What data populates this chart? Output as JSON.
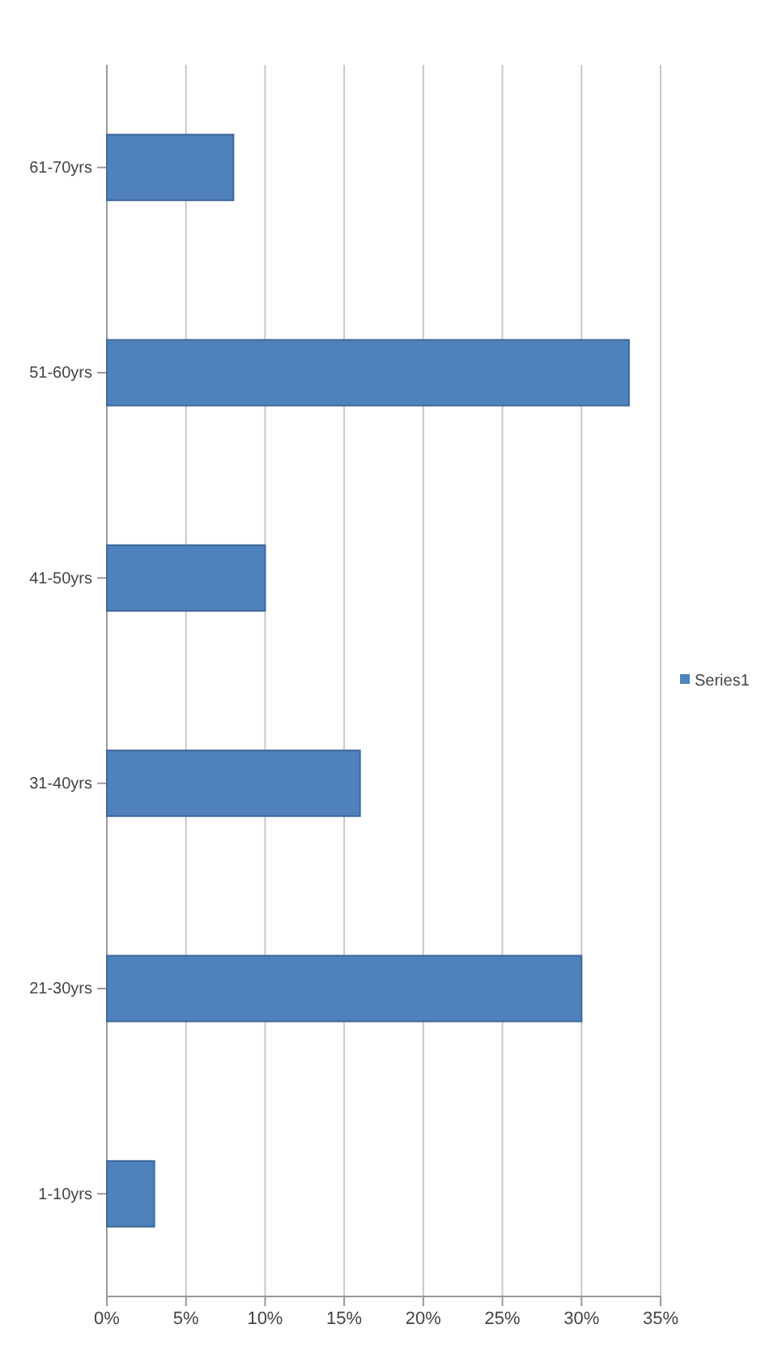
{
  "chart_data": {
    "type": "bar",
    "orientation": "horizontal",
    "categories": [
      "61-70yrs",
      "51-60yrs",
      "41-50yrs",
      "31-40yrs",
      "21-30yrs",
      "1-10yrs"
    ],
    "series": [
      {
        "name": "Series1",
        "color": "#4f81bd",
        "values": [
          8,
          33,
          10,
          16,
          30,
          3
        ]
      }
    ],
    "xlim": [
      0,
      35
    ],
    "xticks": [
      {
        "value": 0,
        "label": "0%"
      },
      {
        "value": 5,
        "label": "5%"
      },
      {
        "value": 10,
        "label": "10%"
      },
      {
        "value": 15,
        "label": "15%"
      },
      {
        "value": 20,
        "label": "20%"
      },
      {
        "value": 25,
        "label": "25%"
      },
      {
        "value": 30,
        "label": "30%"
      },
      {
        "value": 35,
        "label": "35%"
      }
    ],
    "grid": "x",
    "legend": "right"
  }
}
